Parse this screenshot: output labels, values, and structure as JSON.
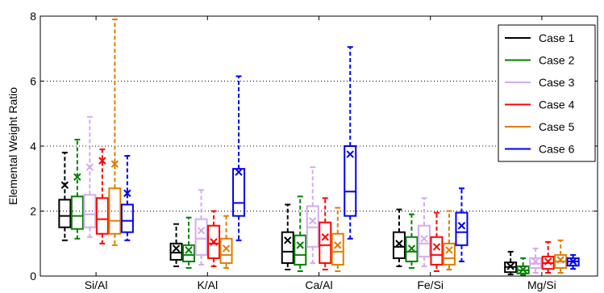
{
  "chart_data": {
    "type": "box",
    "title": "",
    "xlabel": "",
    "ylabel": "Elemental Weight Ratio",
    "ylim": [
      0,
      8
    ],
    "yticks": [
      0,
      2,
      4,
      6,
      8
    ],
    "grid": "dotted horizontal",
    "legend_position": "top-right",
    "categories": [
      "Si/Al",
      "K/Al",
      "Ca/Al",
      "Fe/Si",
      "Mg/Si"
    ],
    "series": [
      {
        "name": "Case 1",
        "color": "#000000",
        "boxes": [
          {
            "min": 1.1,
            "q1": 1.5,
            "median": 1.85,
            "q3": 2.35,
            "max": 3.8,
            "mean": 2.8
          },
          {
            "min": 0.3,
            "q1": 0.5,
            "median": 0.72,
            "q3": 1.0,
            "max": 1.6,
            "mean": 0.85
          },
          {
            "min": 0.2,
            "q1": 0.4,
            "median": 0.75,
            "q3": 1.35,
            "max": 2.2,
            "mean": 1.1
          },
          {
            "min": 0.3,
            "q1": 0.55,
            "median": 0.9,
            "q3": 1.35,
            "max": 2.05,
            "mean": 1.0
          },
          {
            "min": 0.05,
            "q1": 0.12,
            "median": 0.28,
            "q3": 0.42,
            "max": 0.75,
            "mean": 0.3
          }
        ]
      },
      {
        "name": "Case 2",
        "color": "#008000",
        "boxes": [
          {
            "min": 1.15,
            "q1": 1.45,
            "median": 1.85,
            "q3": 2.45,
            "max": 4.2,
            "mean": 3.05
          },
          {
            "min": 0.25,
            "q1": 0.45,
            "median": 0.65,
            "q3": 0.95,
            "max": 1.8,
            "mean": 0.8
          },
          {
            "min": 0.15,
            "q1": 0.35,
            "median": 0.65,
            "q3": 1.25,
            "max": 2.45,
            "mean": 0.95
          },
          {
            "min": 0.25,
            "q1": 0.45,
            "median": 0.75,
            "q3": 1.2,
            "max": 1.9,
            "mean": 0.85
          },
          {
            "min": 0.03,
            "q1": 0.08,
            "median": 0.18,
            "q3": 0.3,
            "max": 0.55,
            "mean": 0.2
          }
        ]
      },
      {
        "name": "Case 3",
        "color": "#d4aaf0",
        "boxes": [
          {
            "min": 1.2,
            "q1": 1.5,
            "median": 1.9,
            "q3": 2.5,
            "max": 4.9,
            "mean": 3.35
          },
          {
            "min": 0.35,
            "q1": 0.65,
            "median": 1.15,
            "q3": 1.75,
            "max": 2.65,
            "mean": 1.4
          },
          {
            "min": 0.4,
            "q1": 0.9,
            "median": 1.5,
            "q3": 2.15,
            "max": 3.35,
            "mean": 1.7
          },
          {
            "min": 0.3,
            "q1": 0.6,
            "median": 1.0,
            "q3": 1.55,
            "max": 2.4,
            "mean": 1.15
          },
          {
            "min": 0.1,
            "q1": 0.25,
            "median": 0.38,
            "q3": 0.55,
            "max": 0.85,
            "mean": 0.45
          }
        ]
      },
      {
        "name": "Case 4",
        "color": "#ff0000",
        "boxes": [
          {
            "min": 1.0,
            "q1": 1.3,
            "median": 1.75,
            "q3": 2.4,
            "max": 3.9,
            "mean": 3.55
          },
          {
            "min": 0.3,
            "q1": 0.55,
            "median": 1.0,
            "q3": 1.55,
            "max": 2.0,
            "mean": 1.05
          },
          {
            "min": 0.2,
            "q1": 0.4,
            "median": 0.95,
            "q3": 1.65,
            "max": 2.4,
            "mean": 1.2
          },
          {
            "min": 0.15,
            "q1": 0.35,
            "median": 0.65,
            "q3": 1.2,
            "max": 1.95,
            "mean": 0.9
          },
          {
            "min": 0.1,
            "q1": 0.22,
            "median": 0.4,
            "q3": 0.6,
            "max": 1.05,
            "mean": 0.45
          }
        ]
      },
      {
        "name": "Case 5",
        "color": "#e07c00",
        "boxes": [
          {
            "min": 0.95,
            "q1": 1.3,
            "median": 1.7,
            "q3": 2.7,
            "max": 7.9,
            "mean": 3.45
          },
          {
            "min": 0.25,
            "q1": 0.4,
            "median": 0.65,
            "q3": 1.15,
            "max": 1.85,
            "mean": 0.85
          },
          {
            "min": 0.15,
            "q1": 0.35,
            "median": 0.75,
            "q3": 1.3,
            "max": 2.1,
            "mean": 0.95
          },
          {
            "min": 0.2,
            "q1": 0.35,
            "median": 0.55,
            "q3": 1.0,
            "max": 2.0,
            "mean": 0.8
          },
          {
            "min": 0.1,
            "q1": 0.25,
            "median": 0.45,
            "q3": 0.65,
            "max": 1.1,
            "mean": 0.5
          }
        ]
      },
      {
        "name": "Case 6",
        "color": "#0000ee",
        "boxes": [
          {
            "min": 1.1,
            "q1": 1.35,
            "median": 1.7,
            "q3": 2.2,
            "max": 3.7,
            "mean": 2.55
          },
          {
            "min": 1.1,
            "q1": 1.85,
            "median": 2.25,
            "q3": 3.3,
            "max": 6.15,
            "mean": 3.2
          },
          {
            "min": 1.15,
            "q1": 1.85,
            "median": 2.6,
            "q3": 4.0,
            "max": 7.05,
            "mean": 3.75
          },
          {
            "min": 0.45,
            "q1": 0.95,
            "median": 1.35,
            "q3": 1.95,
            "max": 2.7,
            "mean": 1.55
          },
          {
            "min": 0.22,
            "q1": 0.32,
            "median": 0.45,
            "q3": 0.55,
            "max": 0.65,
            "mean": 0.45
          }
        ]
      }
    ]
  }
}
